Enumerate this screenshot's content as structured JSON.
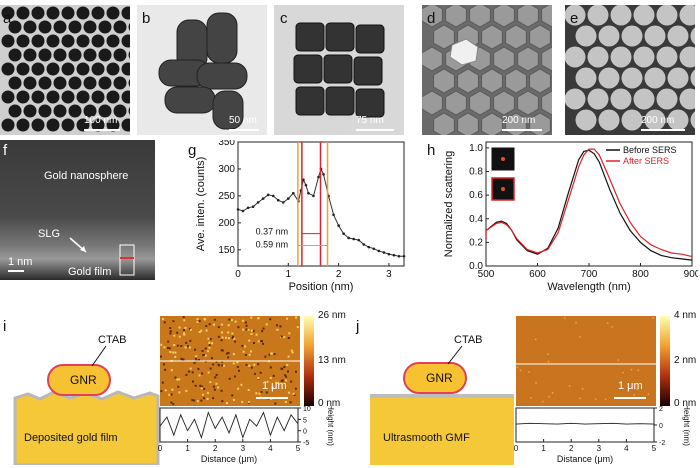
{
  "figure": {
    "panel_letters": [
      "a",
      "b",
      "c",
      "d",
      "e",
      "f",
      "g",
      "h",
      "i",
      "j"
    ],
    "scalebars": {
      "a": "100 nm",
      "b": "50 nm",
      "c": "75 nm",
      "d": "200 nm",
      "e": "200 nm",
      "f": "1 nm"
    },
    "panel_f": {
      "gold_nanosphere": "Gold nanosphere",
      "slg": "SLG",
      "gold_film": "Gold film"
    },
    "panel_g": {
      "ann_037": "0.37 nm",
      "ann_059": "0.59 nm"
    },
    "panel_h": {
      "legend_before": "Before SERS",
      "legend_after": "After SERS"
    },
    "panel_i": {
      "ctab": "CTAB",
      "gnr": "GNR",
      "film": "Deposited gold film",
      "colorbar_ticks": [
        "26 nm",
        "13 nm",
        "0 nm"
      ],
      "scalebar": "1 μm"
    },
    "panel_j": {
      "ctab": "CTAB",
      "gnr": "GNR",
      "film": "Ultrasmooth GMF",
      "colorbar_ticks": [
        "4 nm",
        "2 nm",
        "0 nm"
      ],
      "scalebar": "1 μm"
    },
    "colors": {
      "red_line": "#e0202a",
      "orange_line": "#f0a030",
      "gnr_fill": "#f7c232",
      "gnr_stroke": "#e0405a",
      "film_fill": "#f5c83a",
      "afm_i": "#c8781a",
      "afm_j": "#c9741e"
    }
  },
  "chart_data": [
    {
      "panel": "g",
      "type": "line",
      "xlabel": "Position (nm)",
      "ylabel": "Ave. inten. (counts)",
      "xlim": [
        0,
        3.3
      ],
      "ylim": [
        120,
        350
      ],
      "xticks": [
        "0",
        "1",
        "2",
        "3"
      ],
      "yticks": [
        "150",
        "200",
        "250",
        "300",
        "350"
      ],
      "series": [
        {
          "x": [
            0.0,
            0.1,
            0.2,
            0.3,
            0.4,
            0.5,
            0.6,
            0.7,
            0.8,
            0.9,
            1.0,
            1.1,
            1.2,
            1.25,
            1.3,
            1.35,
            1.4,
            1.5,
            1.6,
            1.65,
            1.7,
            1.8,
            1.9,
            2.0,
            2.1,
            2.2,
            2.3,
            2.4,
            2.5,
            2.6,
            2.7,
            2.8,
            2.9,
            3.0,
            3.1,
            3.2,
            3.3
          ],
          "y": [
            225,
            222,
            228,
            230,
            238,
            245,
            252,
            250,
            242,
            238,
            245,
            255,
            240,
            260,
            280,
            270,
            255,
            250,
            285,
            300,
            290,
            250,
            215,
            195,
            180,
            172,
            170,
            168,
            160,
            155,
            152,
            148,
            145,
            142,
            140,
            138,
            138
          ]
        }
      ],
      "markers": {
        "red": [
          1.27,
          1.64
        ],
        "orange": [
          1.19,
          1.78
        ]
      }
    },
    {
      "panel": "h",
      "type": "line",
      "xlabel": "Wavelength (nm)",
      "ylabel": "Normalized scattering",
      "xlim": [
        500,
        900
      ],
      "ylim": [
        0,
        1.05
      ],
      "xticks": [
        "500",
        "600",
        "700",
        "800",
        "900"
      ],
      "yticks": [
        "0.0",
        "0.2",
        "0.4",
        "0.6",
        "0.8",
        "1.0"
      ],
      "series": [
        {
          "name": "Before SERS",
          "x": [
            480,
            500,
            520,
            530,
            540,
            550,
            560,
            580,
            600,
            620,
            640,
            660,
            680,
            690,
            700,
            710,
            720,
            740,
            760,
            780,
            800,
            820,
            840,
            860,
            880,
            900
          ],
          "y": [
            0.22,
            0.3,
            0.37,
            0.38,
            0.36,
            0.3,
            0.22,
            0.13,
            0.1,
            0.15,
            0.32,
            0.62,
            0.9,
            0.97,
            0.98,
            0.95,
            0.88,
            0.65,
            0.45,
            0.3,
            0.2,
            0.13,
            0.09,
            0.07,
            0.06,
            0.05
          ]
        },
        {
          "name": "After SERS",
          "x": [
            480,
            500,
            520,
            530,
            540,
            550,
            560,
            580,
            600,
            620,
            640,
            660,
            680,
            690,
            700,
            710,
            720,
            740,
            760,
            780,
            800,
            820,
            840,
            860,
            880,
            900
          ],
          "y": [
            0.22,
            0.3,
            0.36,
            0.37,
            0.35,
            0.3,
            0.23,
            0.14,
            0.11,
            0.14,
            0.28,
            0.56,
            0.84,
            0.94,
            0.99,
            0.99,
            0.94,
            0.74,
            0.53,
            0.37,
            0.25,
            0.18,
            0.14,
            0.11,
            0.1,
            0.08
          ]
        }
      ]
    },
    {
      "panel": "i",
      "type": "line",
      "xlabel": "Distance (μm)",
      "ylabel": "Height (nm)",
      "xlim": [
        0,
        5
      ],
      "ylim": [
        -5,
        10
      ],
      "xticks": [
        "0",
        "1",
        "2",
        "3",
        "4",
        "5"
      ],
      "yticks": [
        "-5",
        "0",
        "5",
        "10"
      ],
      "series": [
        {
          "x": [
            0,
            0.25,
            0.5,
            0.75,
            1,
            1.25,
            1.5,
            1.75,
            2,
            2.25,
            2.5,
            2.75,
            3,
            3.25,
            3.5,
            3.75,
            4,
            4.25,
            4.5,
            4.75,
            5
          ],
          "y": [
            2,
            6,
            -2,
            7,
            0,
            5,
            -3,
            8,
            1,
            6,
            -1,
            7,
            -3,
            5,
            2,
            8,
            -2,
            6,
            0,
            7,
            3
          ]
        }
      ]
    },
    {
      "panel": "j",
      "type": "line",
      "xlabel": "Distance (μm)",
      "ylabel": "Height (nm)",
      "xlim": [
        0,
        5
      ],
      "ylim": [
        -2,
        2
      ],
      "xticks": [
        "0",
        "1",
        "2",
        "3",
        "4",
        "5"
      ],
      "yticks": [
        "-2",
        "0",
        "2"
      ],
      "series": [
        {
          "x": [
            0,
            0.5,
            1,
            1.5,
            2,
            2.5,
            3,
            3.5,
            4,
            4.5,
            5
          ],
          "y": [
            0.1,
            0.2,
            0.15,
            0.1,
            0.2,
            0.1,
            0.15,
            0.2,
            0.1,
            0.15,
            0.1
          ]
        }
      ]
    }
  ]
}
